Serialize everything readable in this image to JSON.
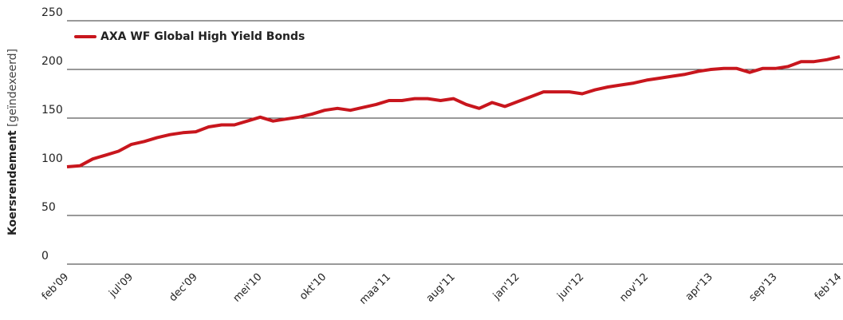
{
  "chart_data": {
    "type": "line",
    "y_label": "Koersrendement",
    "y_label_unit": "[geïndexeerd]",
    "categories": [
      "feb'09",
      null,
      null,
      null,
      null,
      "jul'09",
      null,
      null,
      null,
      null,
      "dec'09",
      null,
      null,
      null,
      null,
      "mei'10",
      null,
      null,
      null,
      null,
      "okt'10",
      null,
      null,
      null,
      null,
      "maa'11",
      null,
      null,
      null,
      null,
      "aug'11",
      null,
      null,
      null,
      null,
      "jan'12",
      null,
      null,
      null,
      null,
      "jun'12",
      null,
      null,
      null,
      null,
      "nov'12",
      null,
      null,
      null,
      null,
      "apr'13",
      null,
      null,
      null,
      null,
      "sep'13",
      null,
      null,
      null,
      null,
      "feb'14"
    ],
    "series": [
      {
        "name": "AXA WF Global High Yield Bonds",
        "color": "#c8161d",
        "values": [
          100,
          101,
          108,
          112,
          116,
          123,
          126,
          130,
          133,
          135,
          136,
          141,
          143,
          143,
          147,
          151,
          147,
          149,
          151,
          154,
          158,
          160,
          158,
          161,
          164,
          168,
          168,
          170,
          170,
          168,
          170,
          164,
          160,
          166,
          162,
          167,
          172,
          177,
          177,
          177,
          175,
          179,
          182,
          184,
          186,
          189,
          191,
          193,
          195,
          198,
          200,
          201,
          201,
          197,
          201,
          201,
          203,
          208,
          208,
          210,
          213
        ]
      }
    ],
    "ylim": [
      0,
      250
    ],
    "yticks": [
      0,
      50,
      100,
      150,
      200,
      250
    ],
    "grid": true,
    "legend": "top-left"
  }
}
